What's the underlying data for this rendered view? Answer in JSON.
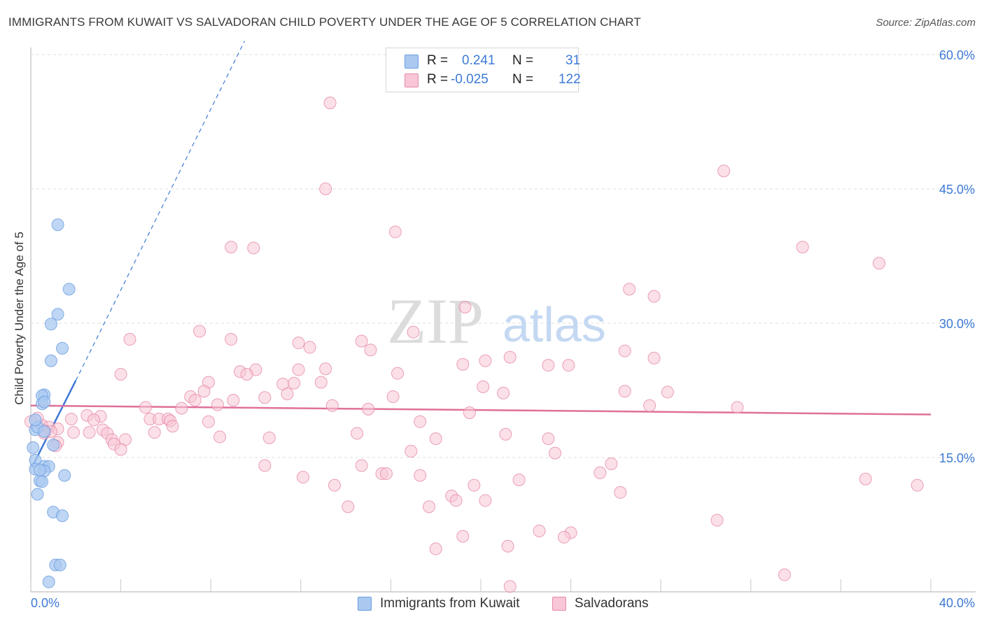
{
  "title": "IMMIGRANTS FROM KUWAIT VS SALVADORAN CHILD POVERTY UNDER THE AGE OF 5 CORRELATION CHART",
  "source": "Source: ZipAtlas.com",
  "watermark": {
    "zip": "ZIP",
    "atlas": "atlas"
  },
  "legend": {
    "rows": [
      {
        "r_label": "R =",
        "r_value": "0.241",
        "n_label": "N =",
        "n_value": "31",
        "color": "#aac8f0",
        "border": "#6a9de0"
      },
      {
        "r_label": "R =",
        "r_value": "-0.025",
        "n_label": "N =",
        "n_value": "122",
        "color": "#f8c6d6",
        "border": "#e68aa8"
      }
    ]
  },
  "bottom_legend": [
    {
      "label": "Immigrants from Kuwait",
      "color": "#aac8f0",
      "border": "#6a9de0"
    },
    {
      "label": "Salvadorans",
      "color": "#f8c6d6",
      "border": "#e68aa8"
    }
  ],
  "chart_data": {
    "type": "scatter",
    "title": "IMMIGRANTS FROM KUWAIT VS SALVADORAN CHILD POVERTY UNDER THE AGE OF 5 CORRELATION CHART",
    "xlabel": "",
    "ylabel": "Child Poverty Under the Age of 5",
    "xlim": [
      0,
      40
    ],
    "ylim": [
      0,
      60
    ],
    "x_tick_labels": [
      "0.0%",
      "40.0%"
    ],
    "y_ticks": [
      15,
      30,
      45,
      60
    ],
    "y_tick_labels": [
      "15.0%",
      "30.0%",
      "45.0%",
      "60.0%"
    ],
    "grid": "horizontal dashed",
    "legend_position": "top-center",
    "series": [
      {
        "name": "Immigrants from Kuwait",
        "color": "#6a9de0",
        "fill": "#aac8f0",
        "trend": {
          "x0": 0.05,
          "y0": 13.9,
          "x1": 2.0,
          "y1": 23.6,
          "dashed_to": [
            9.5,
            61.5
          ]
        },
        "points": [
          [
            0.2,
            18.1
          ],
          [
            0.3,
            18.4
          ],
          [
            0.6,
            17.9
          ],
          [
            1.2,
            41.0
          ],
          [
            1.7,
            33.8
          ],
          [
            1.2,
            31.0
          ],
          [
            0.9,
            29.9
          ],
          [
            1.4,
            27.2
          ],
          [
            0.9,
            25.8
          ],
          [
            0.6,
            22.0
          ],
          [
            0.5,
            21.9
          ],
          [
            0.5,
            21.0
          ],
          [
            0.6,
            21.2
          ],
          [
            0.2,
            19.2
          ],
          [
            0.1,
            16.1
          ],
          [
            1.0,
            16.4
          ],
          [
            0.2,
            14.7
          ],
          [
            0.6,
            14.0
          ],
          [
            0.8,
            14.0
          ],
          [
            0.2,
            13.7
          ],
          [
            0.6,
            13.5
          ],
          [
            1.5,
            13.0
          ],
          [
            0.4,
            12.4
          ],
          [
            0.5,
            12.3
          ],
          [
            0.3,
            10.9
          ],
          [
            1.0,
            8.9
          ],
          [
            1.4,
            8.5
          ],
          [
            1.1,
            3.0
          ],
          [
            1.3,
            3.0
          ],
          [
            0.8,
            1.1
          ],
          [
            0.4,
            13.6
          ]
        ]
      },
      {
        "name": "Salvadorans",
        "color": "#e68aa8",
        "fill": "#f8c6d6",
        "trend": {
          "x0": 0.0,
          "y0": 20.8,
          "x1": 40.0,
          "y1": 19.8
        },
        "points": [
          [
            13.3,
            54.6
          ],
          [
            13.1,
            45.0
          ],
          [
            30.8,
            47.0
          ],
          [
            16.2,
            40.2
          ],
          [
            8.9,
            38.5
          ],
          [
            9.9,
            38.4
          ],
          [
            34.3,
            38.5
          ],
          [
            37.7,
            36.7
          ],
          [
            26.6,
            33.8
          ],
          [
            27.7,
            33.0
          ],
          [
            19.3,
            31.8
          ],
          [
            7.5,
            29.1
          ],
          [
            17.0,
            29.0
          ],
          [
            4.4,
            28.2
          ],
          [
            8.9,
            28.2
          ],
          [
            14.7,
            28.0
          ],
          [
            11.9,
            27.8
          ],
          [
            12.4,
            27.3
          ],
          [
            15.1,
            27.0
          ],
          [
            26.4,
            26.9
          ],
          [
            21.3,
            26.2
          ],
          [
            27.7,
            26.1
          ],
          [
            20.2,
            25.8
          ],
          [
            19.2,
            25.4
          ],
          [
            23.0,
            25.3
          ],
          [
            23.9,
            25.3
          ],
          [
            13.1,
            24.9
          ],
          [
            10.0,
            24.8
          ],
          [
            11.9,
            24.8
          ],
          [
            9.3,
            24.6
          ],
          [
            9.6,
            24.3
          ],
          [
            16.3,
            24.4
          ],
          [
            4.0,
            24.3
          ],
          [
            7.9,
            23.4
          ],
          [
            11.2,
            23.2
          ],
          [
            11.7,
            23.3
          ],
          [
            12.9,
            23.4
          ],
          [
            20.1,
            22.9
          ],
          [
            7.7,
            22.4
          ],
          [
            21.0,
            22.2
          ],
          [
            26.4,
            22.4
          ],
          [
            28.3,
            22.3
          ],
          [
            7.1,
            21.8
          ],
          [
            10.4,
            21.7
          ],
          [
            16.1,
            21.8
          ],
          [
            11.4,
            22.1
          ],
          [
            7.3,
            21.4
          ],
          [
            9.0,
            21.4
          ],
          [
            8.3,
            20.9
          ],
          [
            6.7,
            20.5
          ],
          [
            13.4,
            20.8
          ],
          [
            27.5,
            20.8
          ],
          [
            31.4,
            20.6
          ],
          [
            15.0,
            20.4
          ],
          [
            19.5,
            20.0
          ],
          [
            5.1,
            20.6
          ],
          [
            2.5,
            19.7
          ],
          [
            3.1,
            19.6
          ],
          [
            5.3,
            19.3
          ],
          [
            5.7,
            19.3
          ],
          [
            6.1,
            19.3
          ],
          [
            6.2,
            19.1
          ],
          [
            2.8,
            19.2
          ],
          [
            1.8,
            19.3
          ],
          [
            0.5,
            18.6
          ],
          [
            0.3,
            19.4
          ],
          [
            7.9,
            19.0
          ],
          [
            17.3,
            19.0
          ],
          [
            6.3,
            18.5
          ],
          [
            1.2,
            18.2
          ],
          [
            0.8,
            18.4
          ],
          [
            3.2,
            18.1
          ],
          [
            0.6,
            18.0
          ],
          [
            2.6,
            17.8
          ],
          [
            1.9,
            17.8
          ],
          [
            0.9,
            17.9
          ],
          [
            0.6,
            17.7
          ],
          [
            3.4,
            17.7
          ],
          [
            5.5,
            17.8
          ],
          [
            14.5,
            17.7
          ],
          [
            21.1,
            17.6
          ],
          [
            8.4,
            17.3
          ],
          [
            10.6,
            17.2
          ],
          [
            3.6,
            17.0
          ],
          [
            18.0,
            17.1
          ],
          [
            23.0,
            17.1
          ],
          [
            4.2,
            17.0
          ],
          [
            1.2,
            16.7
          ],
          [
            3.7,
            16.5
          ],
          [
            4.0,
            15.9
          ],
          [
            1.1,
            16.3
          ],
          [
            16.9,
            15.7
          ],
          [
            23.3,
            15.5
          ],
          [
            10.4,
            14.1
          ],
          [
            14.7,
            14.1
          ],
          [
            25.8,
            14.3
          ],
          [
            17.3,
            13.0
          ],
          [
            15.6,
            13.2
          ],
          [
            15.8,
            13.2
          ],
          [
            25.3,
            13.3
          ],
          [
            12.1,
            12.8
          ],
          [
            21.7,
            12.5
          ],
          [
            37.1,
            12.6
          ],
          [
            13.5,
            11.9
          ],
          [
            19.7,
            11.9
          ],
          [
            39.4,
            11.9
          ],
          [
            26.2,
            11.1
          ],
          [
            18.7,
            10.7
          ],
          [
            18.9,
            10.2
          ],
          [
            20.2,
            10.2
          ],
          [
            14.1,
            9.5
          ],
          [
            17.7,
            9.5
          ],
          [
            30.5,
            8.0
          ],
          [
            22.6,
            6.8
          ],
          [
            24.0,
            6.6
          ],
          [
            23.7,
            6.1
          ],
          [
            19.2,
            6.2
          ],
          [
            21.2,
            5.1
          ],
          [
            18.0,
            4.8
          ],
          [
            33.5,
            1.9
          ],
          [
            21.3,
            0.6
          ],
          [
            0.0,
            19.0
          ]
        ]
      }
    ]
  }
}
